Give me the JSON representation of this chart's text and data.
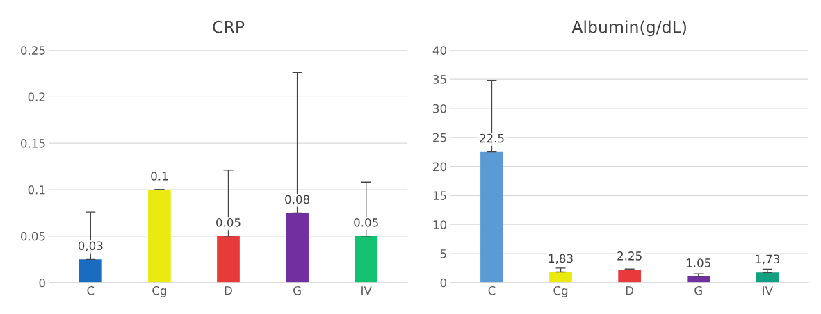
{
  "chart_data": [
    {
      "type": "bar",
      "title": "CRP",
      "categories": [
        "C",
        "Cg",
        "D",
        "G",
        "IV"
      ],
      "values": [
        0.025,
        0.1,
        0.05,
        0.075,
        0.05
      ],
      "colors": [
        "#1a6cc0",
        "#eaea10",
        "#e83a3a",
        "#7030a0",
        "#12c270"
      ],
      "errors": [
        [
          0.025,
          0.076
        ],
        [
          0.1,
          0.1
        ],
        [
          0.05,
          0.121
        ],
        [
          0.075,
          0.226
        ],
        [
          0.05,
          0.108
        ]
      ],
      "value_labels": [
        "0,03",
        "0.1",
        "0.05",
        "0,08",
        "0.05"
      ],
      "ylim": [
        0,
        0.25
      ],
      "yticks": [
        0,
        0.05,
        0.1,
        0.15,
        0.2,
        0.25
      ],
      "grid": "y"
    },
    {
      "type": "bar",
      "title": "Albumin(g/dL)",
      "categories": [
        "C",
        "Cg",
        "D",
        "G",
        "IV"
      ],
      "values": [
        22.5,
        1.83,
        2.25,
        1.05,
        1.73
      ],
      "colors": [
        "#5b9bd5",
        "#eaea10",
        "#e83a3a",
        "#7030a0",
        "#12a080"
      ],
      "errors": [
        [
          22.5,
          34.8
        ],
        [
          1.83,
          2.5
        ],
        [
          2.25,
          2.35
        ],
        [
          1.05,
          1.5
        ],
        [
          1.73,
          2.3
        ]
      ],
      "value_labels": [
        "22.5",
        "1,83",
        "2.25",
        "1.05",
        "1,73"
      ],
      "ylim": [
        0,
        40
      ],
      "yticks": [
        0,
        5,
        10,
        15,
        20,
        25,
        30,
        35,
        40
      ],
      "grid": "y"
    }
  ]
}
